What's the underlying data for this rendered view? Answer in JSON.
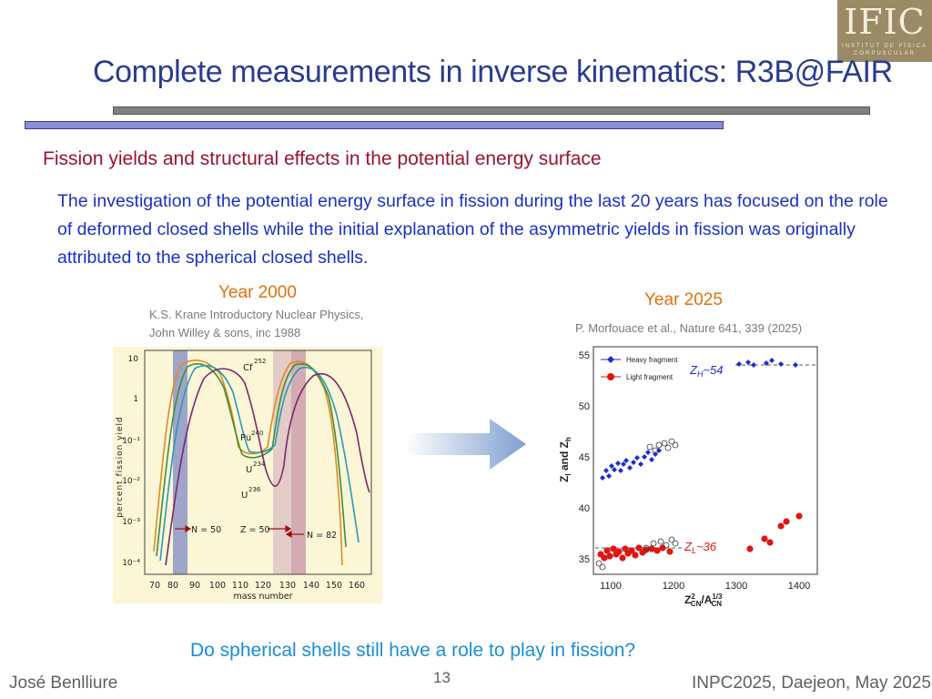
{
  "logo": {
    "text": "IFIC",
    "sub": "INSTITUT DE FÍSICA\nCORPUSCULAR"
  },
  "title": "Complete measurements in inverse kinematics: R3B@FAIR",
  "subtitle": "Fission yields and structural effects in the potential energy surface",
  "body": "The investigation of the potential energy surface in fission during the last 20 years has focused on the role of deformed closed shells while the initial explanation of the asymmetric yields in fission was originally attributed to the spherical closed shells.",
  "left_figure": {
    "year": "Year 2000",
    "citation_line1": "K.S. Krane Introductory Nuclear Physics,",
    "citation_line2": "John Willey & sons, inc 1988",
    "ylabel": "percent fission yield",
    "xlabel": "mass number",
    "x_ticks": [
      "70",
      "80",
      "90",
      "100",
      "110",
      "120",
      "130",
      "140",
      "150",
      "160"
    ],
    "y_ticks": [
      "10",
      "1",
      "10⁻¹",
      "10⁻²",
      "10⁻³",
      "10⁻⁴"
    ],
    "curve_labels": [
      "Cf",
      "252",
      "Pu",
      "240",
      "U",
      "234",
      "U",
      "236"
    ],
    "annotations": [
      "N = 50",
      "Z = 50",
      "N = 82"
    ]
  },
  "right_figure": {
    "year": "Year 2025",
    "citation": "P. Morfouace et al., Nature 641, 339 (2025)",
    "legend": [
      "Heavy fragment",
      "Light fragment"
    ],
    "ylabel": "Z",
    "ylabel_sub1": "l",
    "ylabel_mid": " and Z",
    "ylabel_sub2": "h",
    "x_ticks": [
      "1100",
      "1200",
      "1300",
      "1400"
    ],
    "y_ticks": [
      "55",
      "50",
      "45",
      "40",
      "35"
    ],
    "zh_main": "Z",
    "zh_sub": "H",
    "zh_rest": "~54",
    "zl_main": "Z",
    "zl_sub": "L",
    "zl_rest": "~36",
    "xlabel_z": "Z",
    "xlabel_sup": "2",
    "xlabel_sub1": "CN",
    "xlabel_a": "/A",
    "xlabel_sup2": "1/3",
    "xlabel_sub2": "CN"
  },
  "question": "Do spherical shells still have a role to play in fission?",
  "footer": {
    "author": "José Benlliure",
    "page": "13",
    "event": "INPC2025, Daejeon, May 2025"
  }
}
